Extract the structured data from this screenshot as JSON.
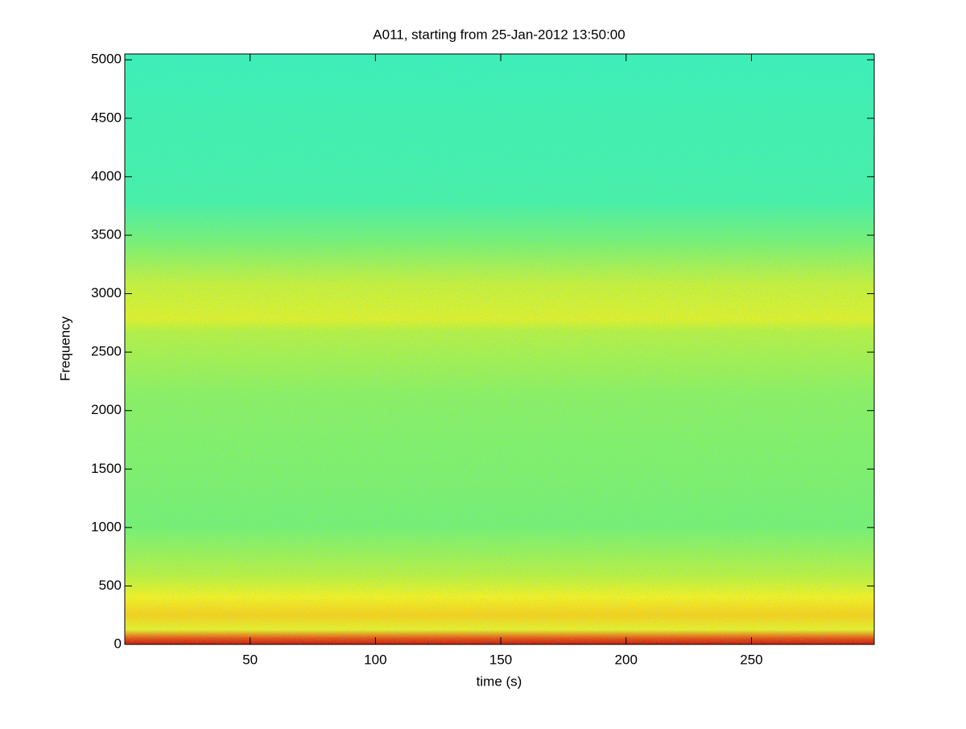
{
  "chart_data": {
    "type": "spectrogram",
    "title": "A011, starting from 25-Jan-2012 13:50:00",
    "x_label": "time (s)",
    "y_label": "Frequency",
    "xlim": [
      0,
      299
    ],
    "xticks": [
      50,
      100,
      150,
      200,
      250
    ],
    "ylim": [
      0,
      5050
    ],
    "yticks": [
      0,
      500,
      1000,
      1500,
      2000,
      2500,
      3000,
      3500,
      4000,
      4500,
      5000
    ]
  }
}
